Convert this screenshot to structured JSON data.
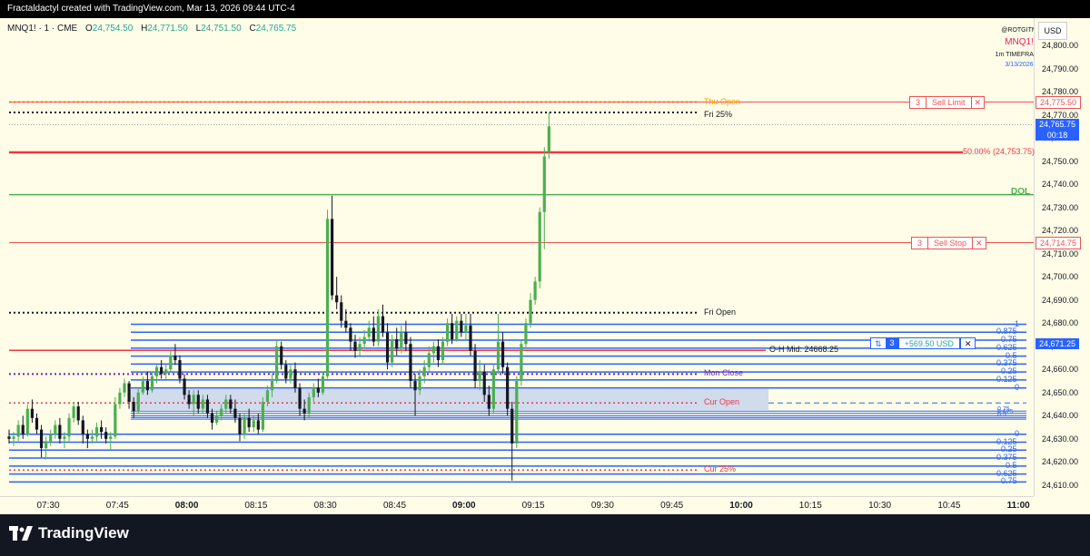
{
  "header": {
    "text": "Fractaldactyl created with TradingView.com, Mar 13, 2026 09:44 UTC-4"
  },
  "legend": {
    "symbol": "MNQ1! · 1 · CME",
    "o_label": "O",
    "o": "24,754.50",
    "h_label": "H",
    "h": "24,771.50",
    "l_label": "L",
    "l": "24,751.50",
    "c_label": "C",
    "c": "24,765.75"
  },
  "right_info": {
    "handle": "@ROTGITM",
    "symbol": "MNQ1!",
    "timeframe": "1m TIMEFRAME",
    "date": "3/13/2026"
  },
  "currency": "USD",
  "price_ticks": [
    "24,800.00",
    "24,790.00",
    "24,780.00",
    "24,770.00",
    "24,760.00",
    "24,750.00",
    "24,740.00",
    "24,730.00",
    "24,720.00",
    "24,710.00",
    "24,700.00",
    "24,690.00",
    "24,680.00",
    "24,670.00",
    "24,660.00",
    "24,650.00",
    "24,640.00",
    "24,630.00",
    "24,620.00",
    "24,610.00"
  ],
  "time_ticks": [
    {
      "label": "07:30",
      "bold": false
    },
    {
      "label": "07:45",
      "bold": false
    },
    {
      "label": "08:00",
      "bold": true
    },
    {
      "label": "08:15",
      "bold": false
    },
    {
      "label": "08:30",
      "bold": false
    },
    {
      "label": "08:45",
      "bold": false
    },
    {
      "label": "09:00",
      "bold": true
    },
    {
      "label": "09:15",
      "bold": false
    },
    {
      "label": "09:30",
      "bold": false
    },
    {
      "label": "09:45",
      "bold": false
    },
    {
      "label": "10:00",
      "bold": true
    },
    {
      "label": "10:15",
      "bold": false
    },
    {
      "label": "10:30",
      "bold": false
    },
    {
      "label": "10:45",
      "bold": false
    },
    {
      "label": "11:00",
      "bold": true
    }
  ],
  "levels": {
    "thu_open": {
      "label": "Thu Open",
      "price": 24775.5
    },
    "fri_25": {
      "label": "Fri 25%",
      "price": 24771.0
    },
    "fifty": {
      "label": "50.00% (24,753.75)",
      "price": 24753.75
    },
    "dol": {
      "label": "DOL",
      "price": 24735.5
    },
    "fri_open": {
      "label": "Fri Open",
      "price": 24684.5
    },
    "oh_mid": {
      "label": "O-H Mid: 24668.25",
      "price": 24668.25
    },
    "mon_close": {
      "label": "Mon Close",
      "price": 24658.0
    },
    "cur_open": {
      "label": "Cur Open",
      "price": 24645.5
    },
    "cur_25": {
      "label": "Cur 25%",
      "price": 24616.5
    }
  },
  "fib_upper": [
    "1",
    "0.875",
    "0.75",
    "0.625",
    "0.5",
    "0.375",
    "0.25",
    "0.125",
    "0"
  ],
  "fib_lower": [
    "0",
    "0.125",
    "0.25",
    "0.375",
    "0.5",
    "0.625",
    "0.75"
  ],
  "fib_mid": [
    "0.75",
    "0.625",
    "0.5"
  ],
  "orders": {
    "sell_limit": {
      "qty": "3",
      "label": "Sell Limit",
      "close": "✕",
      "price_badge": "24,775.50",
      "price": 24775.5
    },
    "sell_stop": {
      "qty": "3",
      "label": "Sell Stop",
      "close": "✕",
      "price_badge": "24,714.75",
      "price": 24714.75
    }
  },
  "position": {
    "arrows": "⇅",
    "qty": "3",
    "pnl": "+569.50 USD",
    "close": "✕",
    "price_badge": "24,671.25",
    "price": 24671.25
  },
  "current_price": {
    "price": "24,765.75",
    "countdown": "00:18",
    "value": 24765.75
  },
  "colors": {
    "up": "#4caf50",
    "down": "#131722",
    "fib": "#2962ff",
    "sell": "#ef5350",
    "dol": "#4caf50",
    "orange": "#ff9800",
    "purple": "#7b1fa2",
    "red_line": "#f23645"
  },
  "footer": {
    "brand": "TradingView"
  },
  "chart_data": {
    "type": "candlestick",
    "timeframe": "1m",
    "x_start": "07:26",
    "x_label_step_minutes": 15,
    "candles": [
      [
        24631,
        24634,
        24628,
        24630
      ],
      [
        24630,
        24633,
        24627,
        24631
      ],
      [
        24631,
        24638,
        24629,
        24636
      ],
      [
        24636,
        24640,
        24630,
        24632
      ],
      [
        24632,
        24645,
        24631,
        24643
      ],
      [
        24643,
        24647,
        24637,
        24639
      ],
      [
        24639,
        24641,
        24632,
        24634
      ],
      [
        24634,
        24636,
        24622,
        24626
      ],
      [
        24626,
        24631,
        24621,
        24629
      ],
      [
        24629,
        24634,
        24627,
        24632
      ],
      [
        24632,
        24638,
        24630,
        24636
      ],
      [
        24636,
        24639,
        24628,
        24630
      ],
      [
        24630,
        24633,
        24626,
        24631
      ],
      [
        24631,
        24641,
        24629,
        24639
      ],
      [
        24639,
        24646,
        24637,
        24644
      ],
      [
        24644,
        24646,
        24636,
        24638
      ],
      [
        24638,
        24640,
        24628,
        24632
      ],
      [
        24632,
        24634,
        24626,
        24630
      ],
      [
        24630,
        24634,
        24628,
        24631
      ],
      [
        24631,
        24637,
        24629,
        24635
      ],
      [
        24635,
        24638,
        24630,
        24633
      ],
      [
        24633,
        24635,
        24628,
        24630
      ],
      [
        24630,
        24633,
        24625,
        24631
      ],
      [
        24631,
        24648,
        24630,
        24645
      ],
      [
        24645,
        24652,
        24643,
        24650
      ],
      [
        24650,
        24656,
        24648,
        24654
      ],
      [
        24654,
        24655,
        24643,
        24646
      ],
      [
        24646,
        24648,
        24639,
        24642
      ],
      [
        24642,
        24652,
        24641,
        24650
      ],
      [
        24650,
        24657,
        24649,
        24655
      ],
      [
        24655,
        24659,
        24649,
        24651
      ],
      [
        24651,
        24659,
        24650,
        24657
      ],
      [
        24657,
        24662,
        24654,
        24661
      ],
      [
        24661,
        24664,
        24656,
        24658
      ],
      [
        24658,
        24662,
        24655,
        24660
      ],
      [
        24660,
        24668,
        24659,
        24666
      ],
      [
        24666,
        24671,
        24662,
        24664
      ],
      [
        24664,
        24666,
        24654,
        24656
      ],
      [
        24656,
        24658,
        24647,
        24649
      ],
      [
        24649,
        24651,
        24643,
        24645
      ],
      [
        24645,
        24651,
        24640,
        24649
      ],
      [
        24649,
        24651,
        24641,
        24643
      ],
      [
        24643,
        24649,
        24641,
        24647
      ],
      [
        24647,
        24649,
        24639,
        24641
      ],
      [
        24641,
        24643,
        24634,
        24637
      ],
      [
        24637,
        24642,
        24636,
        24640
      ],
      [
        24640,
        24645,
        24638,
        24643
      ],
      [
        24643,
        24649,
        24641,
        24647
      ],
      [
        24647,
        24649,
        24641,
        24643
      ],
      [
        24643,
        24647,
        24637,
        24639
      ],
      [
        24639,
        24641,
        24629,
        24632
      ],
      [
        24632,
        24641,
        24630,
        24639
      ],
      [
        24639,
        24643,
        24633,
        24635
      ],
      [
        24635,
        24640,
        24633,
        24638
      ],
      [
        24638,
        24641,
        24632,
        24634
      ],
      [
        24634,
        24648,
        24633,
        24646
      ],
      [
        24646,
        24653,
        24644,
        24651
      ],
      [
        24651,
        24658,
        24648,
        24655
      ],
      [
        24655,
        24673,
        24654,
        24670
      ],
      [
        24670,
        24672,
        24660,
        24662
      ],
      [
        24662,
        24664,
        24654,
        24656
      ],
      [
        24656,
        24662,
        24654,
        24660
      ],
      [
        24660,
        24663,
        24650,
        24652
      ],
      [
        24652,
        24654,
        24640,
        24643
      ],
      [
        24643,
        24647,
        24638,
        24641
      ],
      [
        24641,
        24650,
        24639,
        24648
      ],
      [
        24648,
        24654,
        24646,
        24652
      ],
      [
        24652,
        24656,
        24648,
        24650
      ],
      [
        24650,
        24659,
        24649,
        24657
      ],
      [
        24657,
        24729,
        24656,
        24725
      ],
      [
        24725,
        24735,
        24690,
        24692
      ],
      [
        24692,
        24700,
        24686,
        24689
      ],
      [
        24689,
        24692,
        24678,
        24681
      ],
      [
        24681,
        24686,
        24676,
        24678
      ],
      [
        24678,
        24680,
        24668,
        24672
      ],
      [
        24672,
        24675,
        24665,
        24668
      ],
      [
        24668,
        24674,
        24666,
        24671
      ],
      [
        24671,
        24677,
        24669,
        24674
      ],
      [
        24674,
        24681,
        24672,
        24678
      ],
      [
        24678,
        24683,
        24670,
        24672
      ],
      [
        24672,
        24686,
        24670,
        24683
      ],
      [
        24683,
        24688,
        24674,
        24676
      ],
      [
        24676,
        24680,
        24660,
        24663
      ],
      [
        24663,
        24675,
        24661,
        24673
      ],
      [
        24673,
        24678,
        24666,
        24669
      ],
      [
        24669,
        24679,
        24667,
        24676
      ],
      [
        24676,
        24681,
        24668,
        24671
      ],
      [
        24671,
        24674,
        24652,
        24655
      ],
      [
        24655,
        24658,
        24640,
        24651
      ],
      [
        24651,
        24660,
        24649,
        24657
      ],
      [
        24657,
        24664,
        24654,
        24661
      ],
      [
        24661,
        24670,
        24659,
        24667
      ],
      [
        24667,
        24672,
        24663,
        24670
      ],
      [
        24670,
        24673,
        24661,
        24664
      ],
      [
        24664,
        24674,
        24662,
        24672
      ],
      [
        24672,
        24682,
        24670,
        24680
      ],
      [
        24680,
        24684,
        24671,
        24673
      ],
      [
        24673,
        24683,
        24672,
        24681
      ],
      [
        24681,
        24684,
        24674,
        24676
      ],
      [
        24676,
        24684,
        24673,
        24679
      ],
      [
        24679,
        24684,
        24666,
        24668
      ],
      [
        24668,
        24671,
        24652,
        24655
      ],
      [
        24655,
        24664,
        24651,
        24659
      ],
      [
        24659,
        24662,
        24646,
        24649
      ],
      [
        24649,
        24653,
        24640,
        24643
      ],
      [
        24643,
        24662,
        24641,
        24660
      ],
      [
        24660,
        24684,
        24658,
        24672
      ],
      [
        24672,
        24676,
        24658,
        24661
      ],
      [
        24661,
        24663,
        24640,
        24643
      ],
      [
        24643,
        24646,
        24612,
        24628
      ],
      [
        24628,
        24657,
        24626,
        24655
      ],
      [
        24655,
        24673,
        24653,
        24671
      ],
      [
        24671,
        24682,
        24669,
        24680
      ],
      [
        24680,
        24693,
        24678,
        24690
      ],
      [
        24690,
        24700,
        24688,
        24698
      ],
      [
        24698,
        24730,
        24695,
        24728
      ],
      [
        24728,
        24756,
        24712,
        24752
      ],
      [
        24754,
        24771,
        24751,
        24765
      ]
    ]
  }
}
